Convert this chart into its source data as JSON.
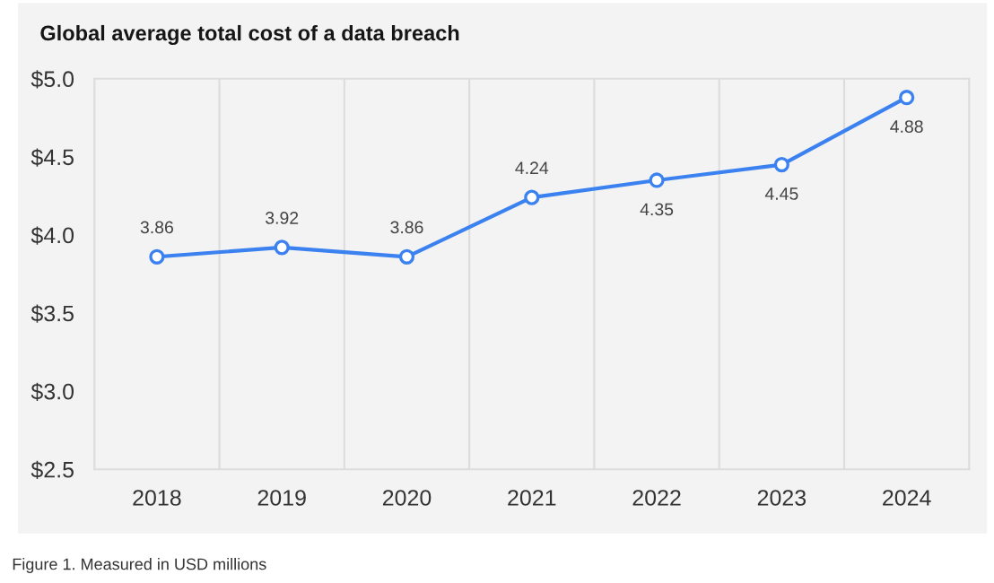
{
  "chart_data": {
    "type": "line",
    "title": "Global average total cost of a data breach",
    "categories": [
      "2018",
      "2019",
      "2020",
      "2021",
      "2022",
      "2023",
      "2024"
    ],
    "series": [
      {
        "color": "#3b82f0",
        "values": [
          3.86,
          3.92,
          3.86,
          4.24,
          4.35,
          4.45,
          4.88
        ]
      }
    ],
    "ylim": [
      2.5,
      5.0
    ],
    "yticks": [
      {
        "value": 2.5,
        "label": "$2.5"
      },
      {
        "value": 3.0,
        "label": "$3.0"
      },
      {
        "value": 3.5,
        "label": "$3.5"
      },
      {
        "value": 4.0,
        "label": "$4.0"
      },
      {
        "value": 4.5,
        "label": "$4.5"
      },
      {
        "value": 5.0,
        "label": "$5.0"
      }
    ],
    "grid": "x",
    "marker": "circle",
    "line_style": "solid",
    "data_labels": true,
    "annotations": [
      "Figure 1. Measured in USD millions"
    ]
  }
}
